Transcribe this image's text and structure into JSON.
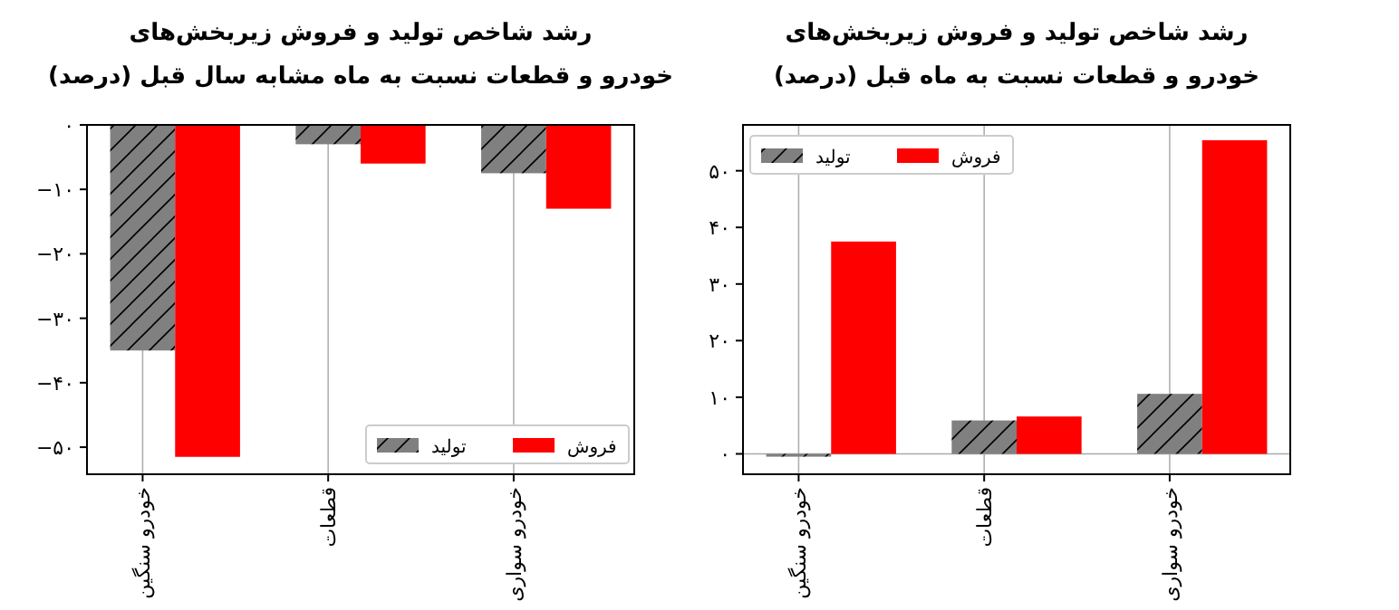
{
  "chart_data": [
    {
      "type": "bar",
      "title": "رشد شاخص تولید و فروش زیربخش‌های",
      "subtitle": "خودرو و قطعات نسبت به ماه مشابه سال قبل (درصد)",
      "categories": [
        "خودرو سنگین",
        "قطعات",
        "خودرو سواری"
      ],
      "series": [
        {
          "name": "تولید",
          "color": "#808080",
          "values": [
            -35,
            -3,
            -7.5
          ]
        },
        {
          "name": "فروش",
          "color": "#ff0000",
          "values": [
            -51.5,
            -6,
            -13
          ]
        }
      ],
      "ylim": [
        -54.2,
        0
      ],
      "yticks": [
        {
          "value": 0,
          "label": "۰"
        },
        {
          "value": -10,
          "label": "−۱۰"
        },
        {
          "value": -20,
          "label": "−۲۰"
        },
        {
          "value": -30,
          "label": "−۳۰"
        },
        {
          "value": -40,
          "label": "−۴۰"
        },
        {
          "value": -50,
          "label": "−۵۰"
        }
      ],
      "grid": "x",
      "legend": "bottom right"
    },
    {
      "type": "bar",
      "title": "رشد شاخص تولید و فروش زیربخش‌های",
      "subtitle": "خودرو و قطعات نسبت به ماه قبل (درصد)",
      "categories": [
        "خودرو سنگین",
        "قطعات",
        "خودرو سواری"
      ],
      "series": [
        {
          "name": "تولید",
          "color": "#808080",
          "values": [
            -0.5,
            5.9,
            10.6
          ]
        },
        {
          "name": "فروش",
          "color": "#ff0000",
          "values": [
            37.5,
            6.6,
            55.4
          ]
        }
      ],
      "ylim": [
        -3.6,
        58.1
      ],
      "yticks": [
        {
          "value": 0,
          "label": "۰"
        },
        {
          "value": 10,
          "label": "۱۰"
        },
        {
          "value": 20,
          "label": "۲۰"
        },
        {
          "value": 30,
          "label": "۳۰"
        },
        {
          "value": 40,
          "label": "۴۰"
        },
        {
          "value": 50,
          "label": "۵۰"
        }
      ],
      "ref_lines": [
        {
          "axis": "y",
          "value": 0,
          "color": "#aaaaaa"
        }
      ],
      "grid": "x",
      "legend": "top left"
    }
  ]
}
